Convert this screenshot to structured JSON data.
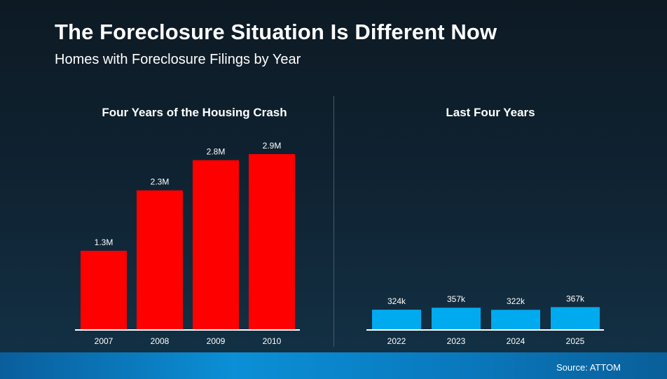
{
  "header": {
    "title": "The Foreclosure Situation Is Different Now",
    "subtitle": "Homes with Foreclosure Filings by Year"
  },
  "footer": {
    "source": "Source: ATTOM"
  },
  "colors": {
    "crash_bar": "#ff0000",
    "recent_bar": "#00aaee",
    "axis": "#ffffff"
  },
  "chart_data": [
    {
      "type": "bar",
      "title": "Four Years of the Housing Crash",
      "categories": [
        "2007",
        "2008",
        "2009",
        "2010"
      ],
      "values": [
        1300000,
        2300000,
        2800000,
        2900000
      ],
      "value_labels": [
        "1.3M",
        "2.3M",
        "2.8M",
        "2.9M"
      ],
      "ylim": [
        0,
        2900000
      ],
      "xlabel": "",
      "ylabel": "",
      "grid": false
    },
    {
      "type": "bar",
      "title": "Last Four Years",
      "categories": [
        "2022",
        "2023",
        "2024",
        "2025"
      ],
      "values": [
        324000,
        357000,
        322000,
        367000
      ],
      "value_labels": [
        "324k",
        "357k",
        "322k",
        "367k"
      ],
      "ylim": [
        0,
        2900000
      ],
      "xlabel": "",
      "ylabel": "",
      "grid": false
    }
  ]
}
